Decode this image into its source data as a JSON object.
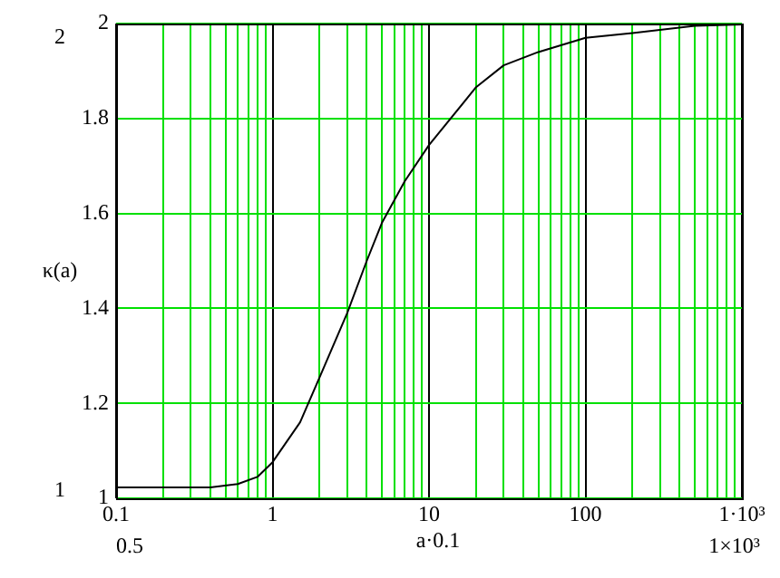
{
  "chart_data": {
    "type": "line",
    "xlabel": "a·0.1",
    "ylabel": "κ(a)",
    "log": "x",
    "grid": true,
    "marker": "none",
    "line_style": "solid",
    "annotations": [
      "2",
      "1",
      "0.5",
      "1×10³"
    ],
    "xlim": [
      0.1,
      1000
    ],
    "ylim": [
      1,
      2
    ],
    "xticks": [
      0.1,
      {
        "value": 0.2,
        "label": null
      },
      {
        "value": 0.3,
        "label": null
      },
      {
        "value": 0.4,
        "label": null
      },
      {
        "value": 0.5,
        "label": null
      },
      {
        "value": 0.6,
        "label": null
      },
      {
        "value": 0.7,
        "label": null
      },
      {
        "value": 0.8,
        "label": null
      },
      {
        "value": 0.9,
        "label": null
      },
      1,
      {
        "value": 2,
        "label": null
      },
      {
        "value": 3,
        "label": null
      },
      {
        "value": 4,
        "label": null
      },
      {
        "value": 5,
        "label": null
      },
      {
        "value": 6,
        "label": null
      },
      {
        "value": 7,
        "label": null
      },
      {
        "value": 8,
        "label": null
      },
      {
        "value": 9,
        "label": null
      },
      10,
      {
        "value": 20,
        "label": null
      },
      {
        "value": 30,
        "label": null
      },
      {
        "value": 40,
        "label": null
      },
      {
        "value": 50,
        "label": null
      },
      {
        "value": 60,
        "label": null
      },
      {
        "value": 70,
        "label": null
      },
      {
        "value": 80,
        "label": null
      },
      {
        "value": 90,
        "label": null
      },
      100,
      {
        "value": 200,
        "label": null
      },
      {
        "value": 300,
        "label": null
      },
      {
        "value": 400,
        "label": null
      },
      {
        "value": 500,
        "label": null
      },
      {
        "value": 600,
        "label": null
      },
      {
        "value": 700,
        "label": null
      },
      {
        "value": 800,
        "label": null
      },
      {
        "value": 900,
        "label": null
      },
      {
        "value": 1000,
        "label": "1·10³"
      }
    ],
    "yticks": [
      1,
      1.2,
      1.4,
      1.6,
      1.8,
      2
    ],
    "series": [
      {
        "color": "#000000",
        "x": [
          0.1,
          0.4,
          0.6,
          0.8,
          1,
          1.5,
          2,
          3,
          4,
          5,
          7,
          10,
          20,
          30,
          50,
          100,
          200,
          500,
          800,
          1000
        ],
        "values": [
          1.023,
          1.023,
          1.03,
          1.045,
          1.076,
          1.16,
          1.255,
          1.39,
          1.5,
          1.58,
          1.668,
          1.744,
          1.866,
          1.912,
          1.94,
          1.97,
          1.98,
          1.995,
          1.997,
          1.998
        ]
      }
    ]
  }
}
